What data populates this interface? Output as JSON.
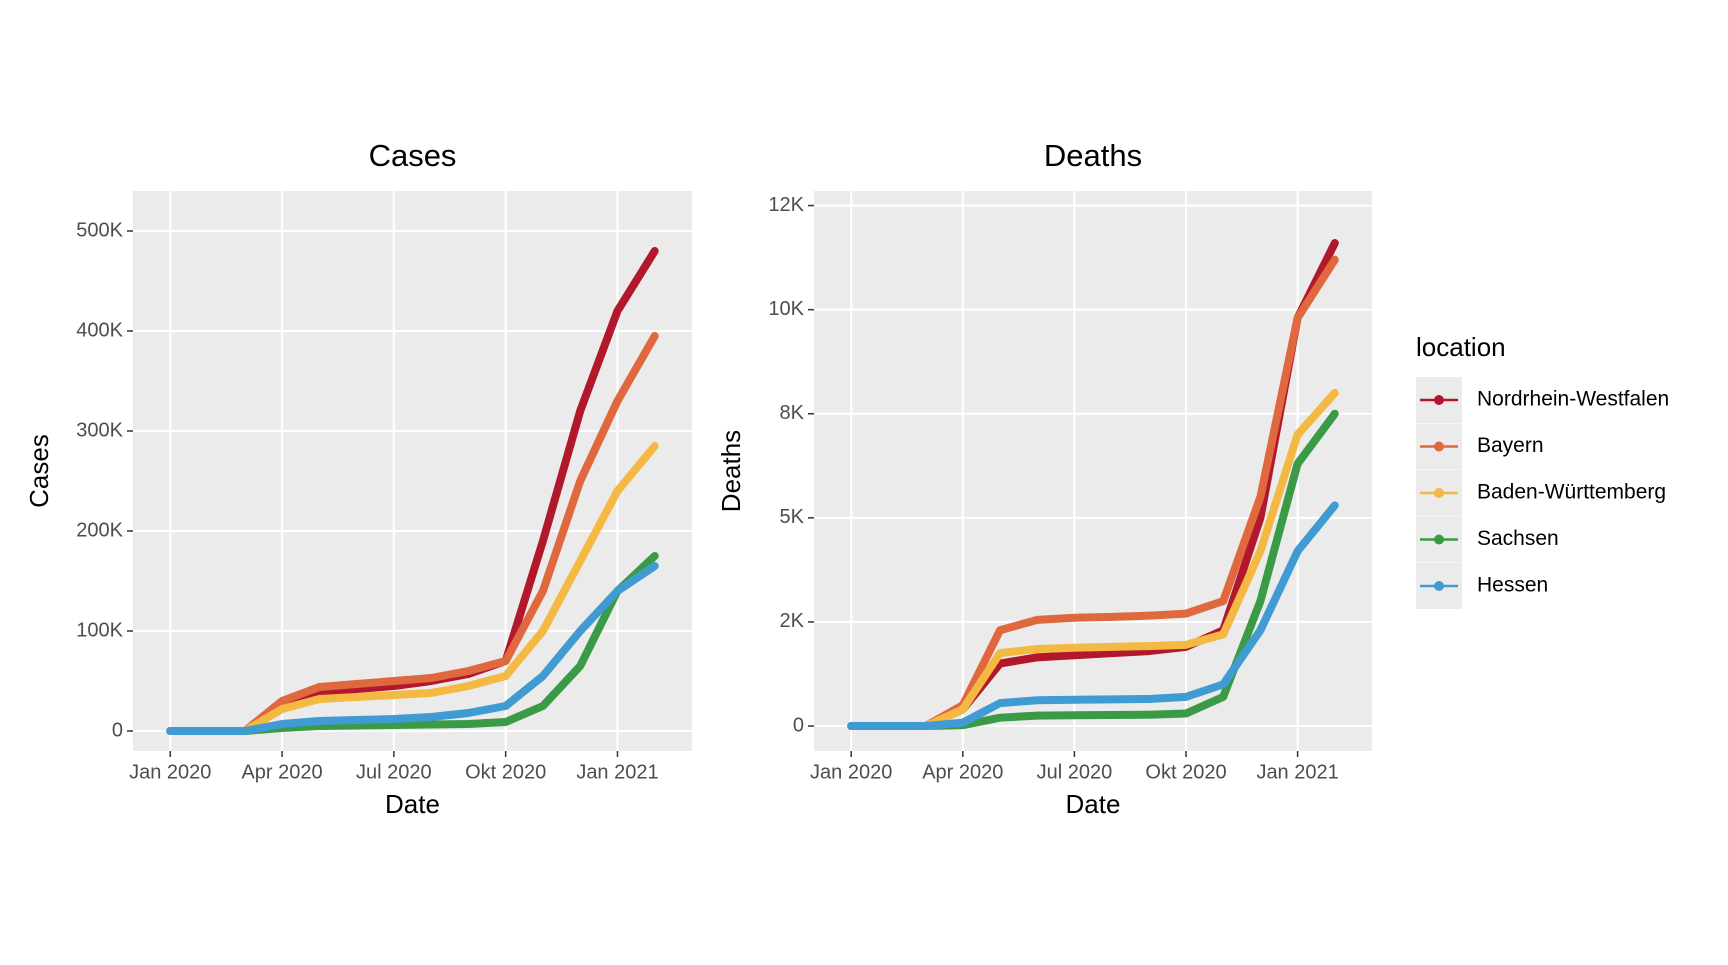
{
  "chart_data": [
    {
      "type": "line",
      "title": "Cases",
      "xlabel": "Date",
      "ylabel": "Cases",
      "legend_title": "location",
      "legend": "right",
      "x": [
        "2020-01",
        "2020-02",
        "2020-03",
        "2020-04",
        "2020-05",
        "2020-06",
        "2020-07",
        "2020-08",
        "2020-09",
        "2020-10",
        "2020-11",
        "2020-12",
        "2021-01",
        "2021-02"
      ],
      "xlim": [
        "2019-12",
        "2021-03"
      ],
      "xticks": [
        {
          "value": "2020-01",
          "label": "Jan 2020"
        },
        {
          "value": "2020-04",
          "label": "Apr 2020"
        },
        {
          "value": "2020-07",
          "label": "Jul 2020"
        },
        {
          "value": "2020-10",
          "label": "Okt 2020"
        },
        {
          "value": "2021-01",
          "label": "Jan 2021"
        }
      ],
      "ylim": [
        -20000,
        540000
      ],
      "yticks": [
        0,
        {
          "value": 100000,
          "label": "100K"
        },
        {
          "value": 200000,
          "label": "200K"
        },
        {
          "value": 300000,
          "label": "300K"
        },
        {
          "value": 400000,
          "label": "400K"
        },
        {
          "value": 500000,
          "label": "500K"
        }
      ],
      "grid": true,
      "series": [
        {
          "name": "Nordrhein-Westfalen",
          "color": "#b2182b",
          "values": [
            0,
            0,
            0,
            25000,
            37000,
            42000,
            45000,
            50000,
            57000,
            70000,
            190000,
            320000,
            420000,
            480000
          ]
        },
        {
          "name": "Bayern",
          "color": "#e0683f",
          "values": [
            0,
            0,
            0,
            30000,
            44000,
            47000,
            50000,
            53000,
            60000,
            70000,
            140000,
            250000,
            330000,
            395000
          ]
        },
        {
          "name": "Baden-Württemberg",
          "color": "#f4b942",
          "values": [
            0,
            0,
            0,
            22000,
            32000,
            34000,
            36000,
            38000,
            45000,
            55000,
            100000,
            170000,
            240000,
            285000
          ]
        },
        {
          "name": "Sachsen",
          "color": "#3a9a45",
          "values": [
            0,
            0,
            0,
            3000,
            5000,
            5500,
            6000,
            6500,
            7000,
            9000,
            25000,
            65000,
            140000,
            175000
          ]
        },
        {
          "name": "Hessen",
          "color": "#3f9bd1",
          "values": [
            0,
            0,
            0,
            7000,
            10000,
            11000,
            12000,
            14000,
            18000,
            25000,
            55000,
            100000,
            140000,
            165000
          ]
        }
      ]
    },
    {
      "type": "line",
      "title": "Deaths",
      "xlabel": "Date",
      "ylabel": "Deaths",
      "x": [
        "2020-01",
        "2020-02",
        "2020-03",
        "2020-04",
        "2020-05",
        "2020-06",
        "2020-07",
        "2020-08",
        "2020-09",
        "2020-10",
        "2020-11",
        "2020-12",
        "2021-01",
        "2021-02"
      ],
      "xlim": [
        "2019-12",
        "2021-03"
      ],
      "xticks": [
        {
          "value": "2020-01",
          "label": "Jan 2020"
        },
        {
          "value": "2020-04",
          "label": "Apr 2020"
        },
        {
          "value": "2020-07",
          "label": "Jul 2020"
        },
        {
          "value": "2020-10",
          "label": "Okt 2020"
        },
        {
          "value": "2021-01",
          "label": "Jan 2021"
        }
      ],
      "ylim": [
        -600,
        12850
      ],
      "yticks": [
        0,
        {
          "value": 2500,
          "label": "2K"
        },
        {
          "value": 5000,
          "label": "5K"
        },
        {
          "value": 7500,
          "label": "8K"
        },
        {
          "value": 10000,
          "label": "10K"
        },
        {
          "value": 12500,
          "label": "12K"
        }
      ],
      "grid": true,
      "series": [
        {
          "color": "#b2182b",
          "values": [
            0,
            0,
            0,
            400,
            1500,
            1650,
            1700,
            1750,
            1800,
            1900,
            2300,
            5000,
            9800,
            11600
          ]
        },
        {
          "color": "#e0683f",
          "values": [
            0,
            0,
            0,
            500,
            2300,
            2550,
            2600,
            2620,
            2650,
            2700,
            3000,
            5500,
            9800,
            11200
          ]
        },
        {
          "color": "#f4b942",
          "values": [
            0,
            0,
            0,
            400,
            1750,
            1850,
            1880,
            1900,
            1920,
            1950,
            2200,
            4200,
            7000,
            8000
          ]
        },
        {
          "color": "#3a9a45",
          "values": [
            0,
            0,
            0,
            20,
            200,
            250,
            260,
            265,
            270,
            300,
            700,
            3000,
            6300,
            7500
          ]
        },
        {
          "color": "#3f9bd1",
          "values": [
            0,
            0,
            0,
            80,
            550,
            620,
            630,
            640,
            650,
            700,
            1000,
            2300,
            4200,
            5300
          ]
        }
      ]
    }
  ]
}
